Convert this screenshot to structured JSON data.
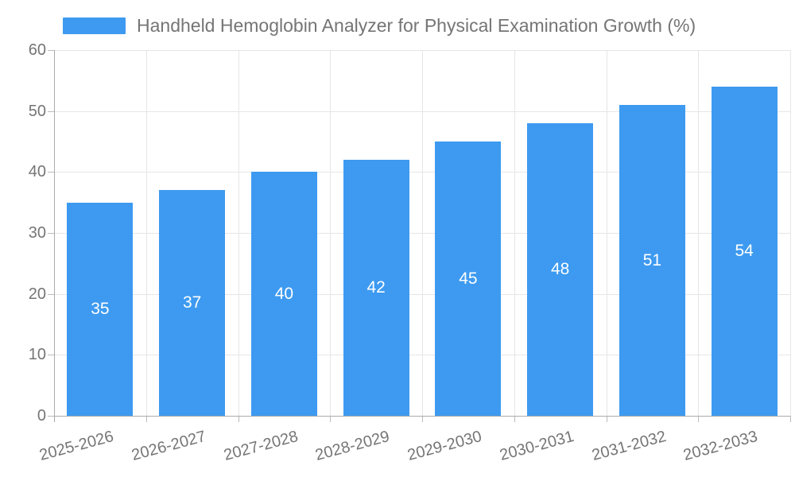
{
  "legend": {
    "series_label": "Handheld Hemoglobin Analyzer for Physical Examination Growth (%)"
  },
  "chart_data": {
    "type": "bar",
    "title": "Handheld Hemoglobin Analyzer for Physical Examination Growth (%)",
    "categories": [
      "2025-2026",
      "2026-2027",
      "2027-2028",
      "2028-2029",
      "2029-2030",
      "2030-2031",
      "2031-2032",
      "2032-2033"
    ],
    "values": [
      35,
      37,
      40,
      42,
      45,
      48,
      51,
      54
    ],
    "xlabel": "",
    "ylabel": "",
    "ylim": [
      0,
      60
    ],
    "yticks": [
      0,
      10,
      20,
      30,
      40,
      50,
      60
    ],
    "grid": "on",
    "legend_position": "top-left",
    "value_labels": "inside-center"
  },
  "colors": {
    "bar": "#3D9AF0",
    "grid": "#E6E6E6",
    "axis": "#AAAAAA",
    "tick": "#BBBBBB",
    "text": "#757575",
    "value_label": "#FFFFFF"
  }
}
